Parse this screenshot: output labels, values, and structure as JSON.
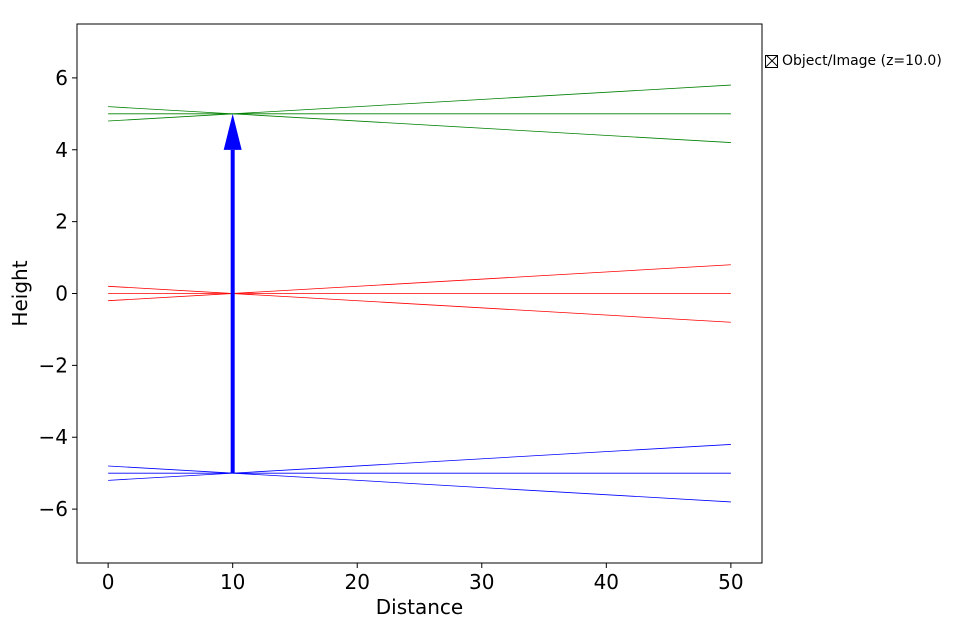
{
  "chart_data": {
    "type": "line",
    "title": "",
    "xlabel": "Distance",
    "ylabel": "Height",
    "xlim": [
      -2.5,
      52.5
    ],
    "ylim": [
      -7.5,
      7.5
    ],
    "x_ticks": [
      0,
      10,
      20,
      30,
      40,
      50
    ],
    "y_ticks": [
      -6,
      -4,
      -2,
      0,
      2,
      4,
      6
    ],
    "y_tick_labels": [
      "−6",
      "−4",
      "−2",
      "0",
      "2",
      "4",
      "6"
    ],
    "grid": false,
    "rays": [
      {
        "color": "#008000",
        "x": [
          0,
          50
        ],
        "y": [
          5.2,
          4.2
        ]
      },
      {
        "color": "#008000",
        "x": [
          0,
          50
        ],
        "y": [
          5.0,
          5.0
        ]
      },
      {
        "color": "#008000",
        "x": [
          0,
          50
        ],
        "y": [
          4.8,
          5.8
        ]
      },
      {
        "color": "#ff0000",
        "x": [
          0,
          50
        ],
        "y": [
          0.2,
          -0.8
        ]
      },
      {
        "color": "#ff0000",
        "x": [
          0,
          50
        ],
        "y": [
          0.0,
          0.0
        ]
      },
      {
        "color": "#ff0000",
        "x": [
          0,
          50
        ],
        "y": [
          -0.2,
          0.8
        ]
      },
      {
        "color": "#0000ff",
        "x": [
          0,
          50
        ],
        "y": [
          -4.8,
          -5.8
        ]
      },
      {
        "color": "#0000ff",
        "x": [
          0,
          50
        ],
        "y": [
          -5.0,
          -5.0
        ]
      },
      {
        "color": "#0000ff",
        "x": [
          0,
          50
        ],
        "y": [
          -5.2,
          -4.2
        ]
      }
    ],
    "object_arrow": {
      "color": "#0000ff",
      "x": 10,
      "y_start": -5,
      "y_end": 5
    },
    "legend": {
      "placement": "outside-right-top",
      "entries": [
        "Object/Image (z=10.0)"
      ]
    }
  }
}
